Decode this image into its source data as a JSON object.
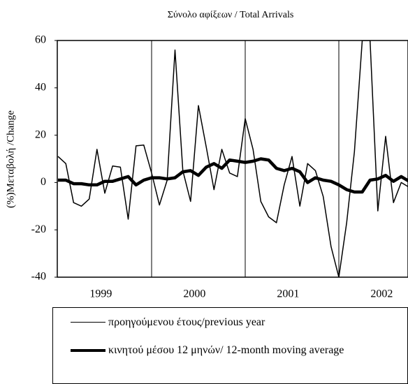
{
  "chart_data": {
    "type": "line",
    "title": "Σύνολο αφίξεων  / Total Arrivals",
    "y_label": "(%)Μεταβολή /Change",
    "categories": [
      null,
      null,
      null,
      null,
      null,
      null,
      "1999",
      null,
      null,
      null,
      null,
      null,
      null,
      null,
      null,
      null,
      null,
      null,
      "2000",
      null,
      null,
      null,
      null,
      null,
      null,
      null,
      null,
      null,
      null,
      null,
      "2001",
      null,
      null,
      null,
      null,
      null,
      null,
      null,
      null,
      null,
      null,
      null,
      "2002",
      null,
      null,
      null,
      null
    ],
    "series": [
      {
        "name": "προηγούμενου έτους/previous year",
        "color": "#000000",
        "width": 1.5,
        "values": [
          11,
          8,
          -8.5,
          -10,
          -7,
          14,
          -4.5,
          7,
          6.5,
          -15.5,
          15.5,
          15.8,
          4,
          -9.5,
          1,
          56,
          5,
          -8,
          32.5,
          15,
          -3,
          14,
          4,
          2.5,
          27,
          14,
          -8,
          -14.5,
          -17,
          -1,
          11,
          -10,
          8,
          5,
          -6,
          -27,
          -40,
          -17,
          13,
          60,
          60,
          -12,
          19.5,
          -8.5,
          0,
          -2,
          -13
        ]
      },
      {
        "name": "κινητού μέσου 12 μηνών/ 12-month moving average",
        "color": "#000000",
        "width": 4.5,
        "values": [
          1,
          1,
          -0.5,
          -0.5,
          -1,
          -1,
          0.5,
          0.5,
          1.5,
          2.5,
          -1,
          1,
          2,
          2,
          1.5,
          2,
          4.5,
          5,
          3,
          6.5,
          8,
          6,
          9.5,
          9,
          8.5,
          9,
          10,
          9.5,
          6,
          5,
          6,
          4.5,
          0,
          2,
          1,
          0.5,
          -1,
          -3,
          -4,
          -4,
          1,
          1.5,
          3,
          0.5,
          2.5,
          0.5,
          -2
        ]
      }
    ],
    "ylim": [
      -40,
      60
    ],
    "yticks": [
      -40,
      -20,
      0,
      20,
      40,
      60
    ]
  }
}
